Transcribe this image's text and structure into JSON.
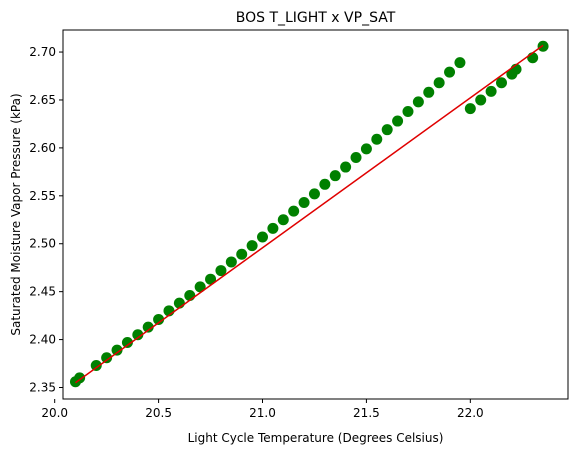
{
  "chart_data": {
    "type": "scatter",
    "title": "BOS T_LIGHT x VP_SAT",
    "xlabel": "Light Cycle Temperature (Degrees Celsius)",
    "ylabel": "Saturated Moisture Vapor Pressure (kPa)",
    "xlim": [
      20.04,
      22.47
    ],
    "ylim": [
      2.338,
      2.723
    ],
    "x_ticks": [
      {
        "value": 20.0,
        "label": "20.0"
      },
      {
        "value": 20.5,
        "label": "20.5"
      },
      {
        "value": 21.0,
        "label": "21.0"
      },
      {
        "value": 21.5,
        "label": "21.5"
      },
      {
        "value": 22.0,
        "label": "22.0"
      }
    ],
    "y_ticks": [
      {
        "value": 2.35,
        "label": "2.35"
      },
      {
        "value": 2.4,
        "label": "2.40"
      },
      {
        "value": 2.45,
        "label": "2.45"
      },
      {
        "value": 2.5,
        "label": "2.50"
      },
      {
        "value": 2.55,
        "label": "2.55"
      },
      {
        "value": 2.6,
        "label": "2.60"
      },
      {
        "value": 2.65,
        "label": "2.65"
      },
      {
        "value": 2.7,
        "label": "2.70"
      }
    ],
    "grid": false,
    "legend": "none",
    "series": [
      {
        "kind": "scatter",
        "color": "#008000",
        "x": [
          20.1,
          20.12,
          20.2,
          20.25,
          20.3,
          20.35,
          20.4,
          20.45,
          20.5,
          20.55,
          20.6,
          20.65,
          20.7,
          20.75,
          20.8,
          20.85,
          20.9,
          20.95,
          21.0,
          21.05,
          21.1,
          21.15,
          21.2,
          21.25,
          21.3,
          21.35,
          21.4,
          21.45,
          21.5,
          21.55,
          21.6,
          21.65,
          21.7,
          21.75,
          21.8,
          21.85,
          21.9,
          21.95,
          22.0,
          22.05,
          22.1,
          22.15,
          22.2,
          22.22,
          22.3,
          22.35
        ],
        "y": [
          2.356,
          2.36,
          2.373,
          2.381,
          2.389,
          2.397,
          2.405,
          2.413,
          2.421,
          2.43,
          2.438,
          2.446,
          2.455,
          2.463,
          2.472,
          2.481,
          2.489,
          2.498,
          2.507,
          2.516,
          2.525,
          2.534,
          2.543,
          2.552,
          2.562,
          2.571,
          2.58,
          2.59,
          2.599,
          2.609,
          2.619,
          2.628,
          2.638,
          2.648,
          2.658,
          2.668,
          2.679,
          2.689,
          2.641,
          2.65,
          2.659,
          2.668,
          2.677,
          2.682,
          2.694,
          2.706
        ]
      },
      {
        "kind": "line",
        "color": "#e00000",
        "x": [
          20.1,
          22.35
        ],
        "y": [
          2.355,
          2.707
        ]
      }
    ]
  }
}
